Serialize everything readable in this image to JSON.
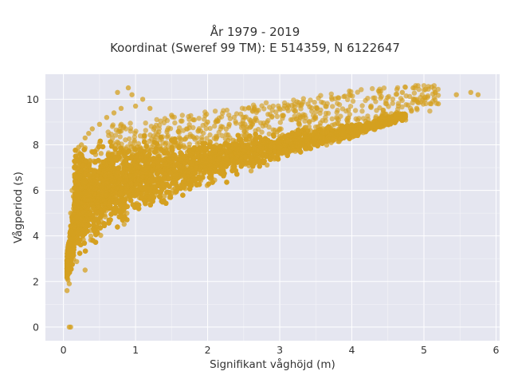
{
  "chart_data": {
    "type": "scatter",
    "title_lines": [
      "År 1979 - 2019",
      "Koordinat (Sweref 99 TM): E 514359, N 6122647"
    ],
    "xlabel": "Signifikant våghöjd (m)",
    "ylabel": "Vågperiod (s)",
    "xlim": [
      -0.25,
      6.05
    ],
    "ylim": [
      -0.6,
      11.1
    ],
    "x_ticks": [
      "0",
      "1",
      "2",
      "3",
      "4",
      "5",
      "6"
    ],
    "y_ticks": [
      "0",
      "2",
      "4",
      "6",
      "8",
      "10"
    ],
    "grid": true,
    "legend": "none",
    "point_color": "#d4a020",
    "background": "#e5e6f0",
    "series": [
      {
        "x": [
          0.05,
          0.08,
          0.06,
          0.1,
          0.12,
          0.15,
          0.2,
          0.25,
          0.3,
          0.35,
          0.4,
          0.5,
          0.6,
          0.7,
          0.8,
          1.0,
          1.2,
          1.5,
          1.8,
          2.0,
          2.3,
          2.6,
          3.0,
          3.3,
          3.6,
          4.0,
          4.3,
          4.6,
          4.9,
          5.1,
          0.9,
          0.95,
          1.1,
          0.75,
          0.3,
          0.08,
          0.1,
          5.45,
          5.65,
          5.75,
          5.2,
          4.85,
          4.7
        ],
        "y": [
          1.6,
          1.9,
          3.5,
          5.0,
          6.0,
          7.0,
          7.5,
          8.0,
          8.3,
          8.5,
          8.7,
          8.9,
          9.2,
          9.4,
          9.6,
          9.7,
          9.6,
          9.3,
          9.1,
          9.0,
          8.9,
          8.8,
          8.7,
          8.6,
          8.7,
          8.8,
          9.0,
          9.3,
          9.6,
          9.8,
          10.5,
          10.2,
          10.0,
          10.3,
          2.5,
          0.0,
          0.0,
          10.2,
          10.3,
          10.2,
          9.8,
          10.5,
          10.3
        ]
      }
    ]
  }
}
